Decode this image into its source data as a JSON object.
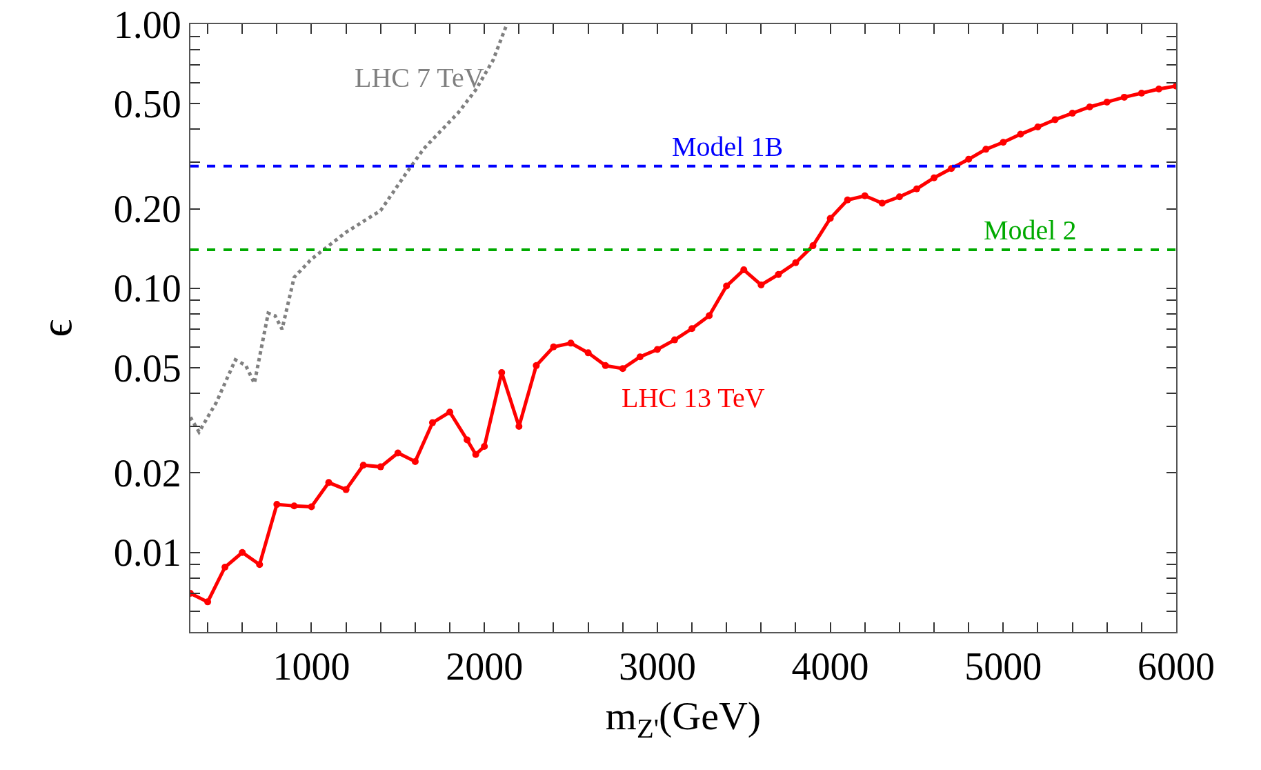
{
  "chart_data": {
    "type": "line",
    "xlabel": "m$_{Z'}$(GeV)",
    "ylabel": "ϵ",
    "log": "y",
    "grid": false,
    "legend": false,
    "xlim": [
      300,
      6000
    ],
    "ylim": [
      0.005,
      1.0
    ],
    "xticks": [
      {
        "value": 400,
        "label": null
      },
      {
        "value": 600,
        "label": null
      },
      {
        "value": 800,
        "label": null
      },
      1000,
      {
        "value": 1200,
        "label": null
      },
      {
        "value": 1400,
        "label": null
      },
      {
        "value": 1600,
        "label": null
      },
      {
        "value": 1800,
        "label": null
      },
      2000,
      {
        "value": 2200,
        "label": null
      },
      {
        "value": 2400,
        "label": null
      },
      {
        "value": 2600,
        "label": null
      },
      {
        "value": 2800,
        "label": null
      },
      3000,
      {
        "value": 3200,
        "label": null
      },
      {
        "value": 3400,
        "label": null
      },
      {
        "value": 3600,
        "label": null
      },
      {
        "value": 3800,
        "label": null
      },
      4000,
      {
        "value": 4200,
        "label": null
      },
      {
        "value": 4400,
        "label": null
      },
      {
        "value": 4600,
        "label": null
      },
      {
        "value": 4800,
        "label": null
      },
      5000,
      {
        "value": 5200,
        "label": null
      },
      {
        "value": 5400,
        "label": null
      },
      {
        "value": 5600,
        "label": null
      },
      {
        "value": 5800,
        "label": null
      },
      6000
    ],
    "yticks": [
      {
        "value": 0.006,
        "label": null
      },
      {
        "value": 0.007,
        "label": null
      },
      {
        "value": 0.008,
        "label": null
      },
      {
        "value": 0.009,
        "label": null
      },
      {
        "value": 0.01,
        "label": "0.01"
      },
      {
        "value": 0.02,
        "label": "0.02"
      },
      {
        "value": 0.03,
        "label": null
      },
      {
        "value": 0.04,
        "label": null
      },
      {
        "value": 0.05,
        "label": "0.05"
      },
      {
        "value": 0.06,
        "label": null
      },
      {
        "value": 0.07,
        "label": null
      },
      {
        "value": 0.08,
        "label": null
      },
      {
        "value": 0.09,
        "label": null
      },
      {
        "value": 0.1,
        "label": "0.10"
      },
      {
        "value": 0.2,
        "label": "0.20"
      },
      {
        "value": 0.3,
        "label": null
      },
      {
        "value": 0.4,
        "label": null
      },
      {
        "value": 0.5,
        "label": "0.50"
      },
      {
        "value": 0.6,
        "label": null
      },
      {
        "value": 0.7,
        "label": null
      },
      {
        "value": 0.8,
        "label": null
      },
      {
        "value": 0.9,
        "label": null
      },
      {
        "value": 1.0,
        "label": "1.00"
      }
    ],
    "series": [
      {
        "name": "LHC 13 TeV",
        "color": "#ff0000",
        "marker": "circle",
        "line_style": "solid",
        "x": [
          300,
          400,
          500,
          600,
          700,
          800,
          900,
          1000,
          1100,
          1200,
          1300,
          1400,
          1500,
          1600,
          1700,
          1800,
          1900,
          1950,
          2000,
          2100,
          2200,
          2300,
          2400,
          2500,
          2600,
          2700,
          2800,
          2900,
          3000,
          3100,
          3200,
          3300,
          3400,
          3500,
          3600,
          3700,
          3800,
          3900,
          4000,
          4100,
          4200,
          4300,
          4400,
          4500,
          4600,
          4700,
          4800,
          4900,
          5000,
          5100,
          5200,
          5300,
          5400,
          5500,
          5600,
          5700,
          5800,
          5900,
          6000
        ],
        "values": [
          0.007,
          0.0065,
          0.0088,
          0.01,
          0.009,
          0.0152,
          0.015,
          0.0149,
          0.0184,
          0.0173,
          0.0214,
          0.0211,
          0.0238,
          0.0221,
          0.031,
          0.034,
          0.0267,
          0.0235,
          0.0252,
          0.048,
          0.03,
          0.051,
          0.06,
          0.062,
          0.057,
          0.051,
          0.0497,
          0.055,
          0.0587,
          0.0638,
          0.0704,
          0.0788,
          0.102,
          0.1175,
          0.103,
          0.1128,
          0.125,
          0.145,
          0.184,
          0.216,
          0.224,
          0.21,
          0.222,
          0.238,
          0.262,
          0.284,
          0.308,
          0.336,
          0.357,
          0.383,
          0.408,
          0.435,
          0.46,
          0.486,
          0.507,
          0.529,
          0.548,
          0.568,
          0.583
        ]
      },
      {
        "name": "LHC 7 TeV",
        "color": "#808080",
        "marker": "none",
        "line_style": "dotted",
        "x": [
          300,
          350,
          450,
          560,
          620,
          670,
          750,
          790,
          830,
          900,
          1000,
          1200,
          1400,
          1550,
          1650,
          1850,
          1950,
          2050,
          2130
        ],
        "values": [
          0.0325,
          0.0286,
          0.037,
          0.0536,
          0.0511,
          0.0437,
          0.0805,
          0.0787,
          0.07,
          0.11,
          0.129,
          0.163,
          0.197,
          0.274,
          0.338,
          0.463,
          0.564,
          0.73,
          1.0
        ]
      }
    ],
    "ref_lines": [
      {
        "axis": "y",
        "value": 0.29,
        "label": "Model 1B",
        "color": "#0000ff",
        "line_style": "dashed"
      },
      {
        "axis": "y",
        "value": 0.14,
        "label": "Model 2",
        "color": "#00aa00",
        "line_style": "dashed"
      }
    ]
  }
}
